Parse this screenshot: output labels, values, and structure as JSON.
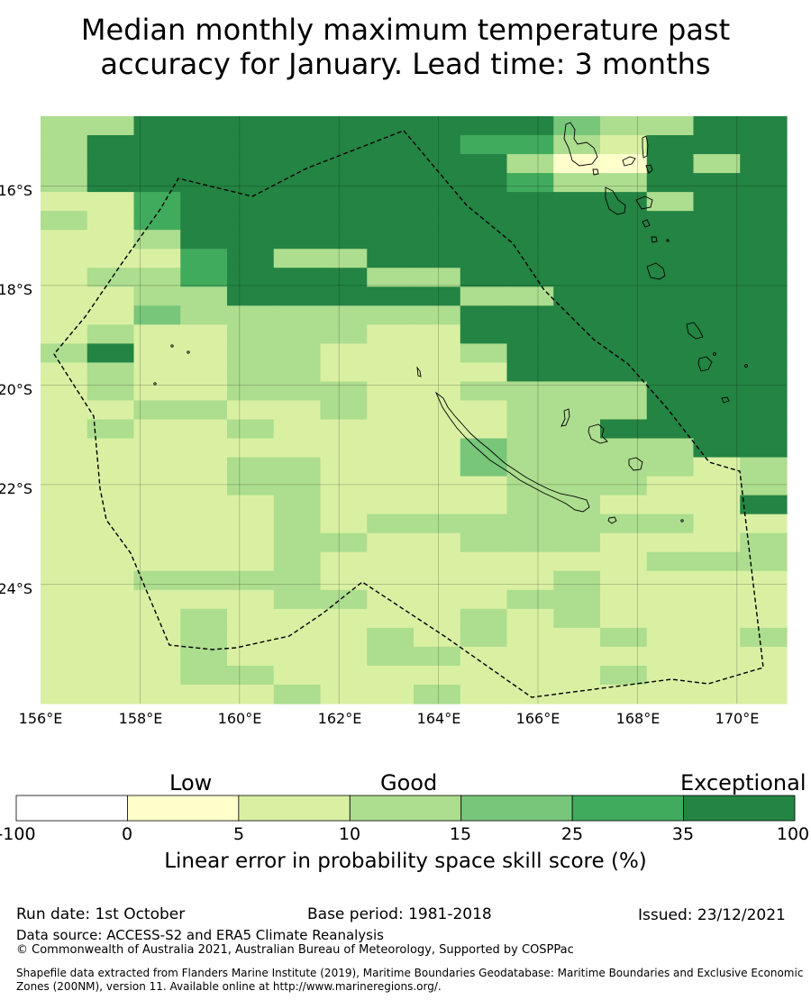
{
  "title": {
    "line1": "Median monthly maximum temperature past",
    "line2": "accuracy for January. Lead time: 3 months"
  },
  "map": {
    "lat_axis_labels": [
      "16°S",
      "18°S",
      "20°S",
      "22°S",
      "24°S"
    ],
    "lon_axis_labels": [
      "156°E",
      "158°E",
      "160°E",
      "162°E",
      "164°E",
      "166°E",
      "168°E",
      "170°E"
    ],
    "lon_range": [
      156,
      171
    ],
    "lat_range": [
      -14.6,
      -26.4
    ],
    "grid": true,
    "grid_color_codes": [
      "3366666666643366",
      "3666666665532666",
      "3666666666311636",
      "3666666666533666",
      "2256666666666366",
      "3256666666666666",
      "2236666666666666",
      "2225633666666666",
      "2335666336666666",
      "2233666663366666",
      "2243333336666666",
      "2322333226666666",
      "3622332223666666",
      "2322332222666666",
      "2322333223333666",
      "2233223222333666",
      "2322322222336666",
      "2222222224333366",
      "2222332224333323",
      "2222332222333223",
      "2222232222332226",
      "2222232333333322",
      "2222233223332223",
      "2222232222222333",
      "2233332222232222",
      "2222233222332222",
      "2223222223232222",
      "2223222323223223",
      "2223222332222222",
      "2223322222223222",
      "2222232232222222"
    ],
    "level_colors": [
      "#ffffff",
      "#ffffcc",
      "#d9f0a3",
      "#addd8e",
      "#78c679",
      "#41ab5d",
      "#238443"
    ],
    "boundary_color": "#000000"
  },
  "legend": {
    "category_labels": [
      "Low",
      "Good",
      "Exceptional"
    ],
    "tick_labels": [
      "-100",
      "0",
      "5",
      "10",
      "15",
      "25",
      "35",
      "100"
    ],
    "colors": [
      "#ffffff",
      "#ffffcc",
      "#d9f0a3",
      "#addd8e",
      "#78c679",
      "#41ab5d",
      "#238443"
    ],
    "caption": "Linear error in probability space skill score (%)"
  },
  "footer": {
    "run_date": "Run date: 1st October",
    "base_period": "Base period: 1981-2018",
    "issued": "Issued: 23/12/2021",
    "data_source": "Data source: ACCESS-S2 and ERA5 Climate Reanalysis",
    "copyright": "© Commonwealth of Australia 2021, Australian Bureau of Meteorology, Supported by COSPPac",
    "shapefile_note": "Shapefile data extracted from Flanders Marine Institute (2019), Maritime Boundaries Geodatabase: Maritime Boundaries and Exclusive Economic Zones (200NM), version 11. Available online at http://www.marineregions.org/."
  }
}
